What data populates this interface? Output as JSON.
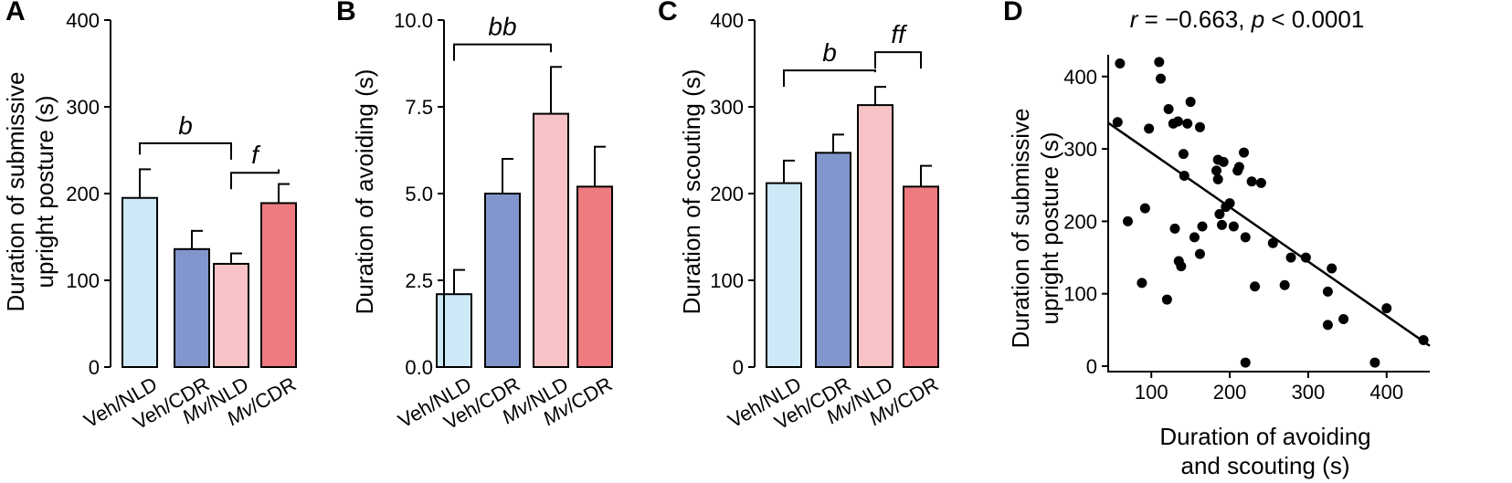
{
  "colors": {
    "veh_nld": "#cde9f8",
    "veh_cdr": "#8196cc",
    "mv_nld": "#f7c3c6",
    "mv_cdr": "#ee7b7f"
  },
  "chart_data": [
    {
      "panel": "A",
      "type": "bar",
      "ylabel_line1": "Duration of submissive",
      "ylabel_line2": "upright posture (s)",
      "ylim": [
        0,
        400
      ],
      "yticks": [
        "0",
        "100",
        "200",
        "300",
        "400"
      ],
      "ytick_values": [
        0,
        100,
        200,
        300,
        400
      ],
      "categories": [
        {
          "pre": "Veh",
          "post": "/NLD",
          "italic_pre": false
        },
        {
          "pre": "Veh",
          "post": "/CDR",
          "italic_pre": false
        },
        {
          "pre": "Mv",
          "post": "/NLD",
          "italic_pre": true
        },
        {
          "pre": "Mv",
          "post": "/CDR",
          "italic_pre": true
        }
      ],
      "values": [
        195,
        136,
        119,
        189
      ],
      "errors": [
        33,
        21,
        12,
        22
      ],
      "brackets": [
        {
          "label": "b",
          "from": 0,
          "to": 2,
          "top": 258
        },
        {
          "label": "f",
          "from": 2,
          "to": 3,
          "top": 224
        }
      ]
    },
    {
      "panel": "B",
      "type": "bar",
      "ylabel_line1": "Duration of avoiding (s)",
      "ylabel_line2": "",
      "ylim": [
        0,
        10
      ],
      "yticks": [
        "0.0",
        "2.5",
        "5.0",
        "7.5",
        "10.0"
      ],
      "ytick_values": [
        0,
        2.5,
        5,
        7.5,
        10
      ],
      "categories": [
        {
          "pre": "Veh",
          "post": "/NLD",
          "italic_pre": false
        },
        {
          "pre": "Veh",
          "post": "/CDR",
          "italic_pre": false
        },
        {
          "pre": "Mv",
          "post": "/NLD",
          "italic_pre": true
        },
        {
          "pre": "Mv",
          "post": "/CDR",
          "italic_pre": true
        }
      ],
      "values": [
        2.1,
        5.0,
        7.3,
        5.2
      ],
      "errors": [
        0.7,
        1.0,
        1.35,
        1.15
      ],
      "brackets": [
        {
          "label": "bb",
          "from": 0,
          "to": 2,
          "top": 9.3
        }
      ]
    },
    {
      "panel": "C",
      "type": "bar",
      "ylabel_line1": "Duration of scouting (s)",
      "ylabel_line2": "",
      "ylim": [
        0,
        400
      ],
      "yticks": [
        "0",
        "100",
        "200",
        "300",
        "400"
      ],
      "ytick_values": [
        0,
        100,
        200,
        300,
        400
      ],
      "categories": [
        {
          "pre": "Veh",
          "post": "/NLD",
          "italic_pre": false
        },
        {
          "pre": "Veh",
          "post": "/CDR",
          "italic_pre": false
        },
        {
          "pre": "Mv",
          "post": "/NLD",
          "italic_pre": true
        },
        {
          "pre": "Mv",
          "post": "/CDR",
          "italic_pre": true
        }
      ],
      "values": [
        212,
        247,
        302,
        208
      ],
      "errors": [
        26,
        21,
        21,
        24
      ],
      "brackets": [
        {
          "label": "b",
          "from": 0,
          "to": 2,
          "top": 342
        },
        {
          "label": "ff",
          "from": 2,
          "to": 3,
          "top": 363
        }
      ]
    },
    {
      "panel": "D",
      "type": "scatter",
      "title": "r = −0.663, p < 0.0001",
      "title_r": "r",
      "title_mid": " = −0.663, ",
      "title_p": "p",
      "title_end": " < 0.0001",
      "ylabel_line1": "Duration of submissive",
      "ylabel_line2": "upright posture (s)",
      "xlabel_line1": "Duration of avoiding",
      "xlabel_line2": "and scouting (s)",
      "xlim": [
        45,
        455
      ],
      "ylim": [
        -5,
        430
      ],
      "xticks": [
        "100",
        "200",
        "300",
        "400"
      ],
      "xtick_values": [
        100,
        200,
        300,
        400
      ],
      "yticks": [
        "0",
        "100",
        "200",
        "300",
        "400"
      ],
      "ytick_values": [
        0,
        100,
        200,
        300,
        400
      ],
      "fit": {
        "x": [
          45,
          455
        ],
        "y": [
          336,
          28
        ]
      },
      "points": [
        [
          60,
          418
        ],
        [
          57,
          337
        ],
        [
          92,
          218
        ],
        [
          70,
          200
        ],
        [
          88,
          115
        ],
        [
          97,
          328
        ],
        [
          110,
          420
        ],
        [
          112,
          397
        ],
        [
          122,
          355
        ],
        [
          130,
          190
        ],
        [
          128,
          335
        ],
        [
          134,
          338
        ],
        [
          135,
          145
        ],
        [
          138,
          138
        ],
        [
          142,
          263
        ],
        [
          141,
          293
        ],
        [
          150,
          365
        ],
        [
          146,
          335
        ],
        [
          162,
          330
        ],
        [
          165,
          193
        ],
        [
          162,
          155
        ],
        [
          120,
          92
        ],
        [
          155,
          178
        ],
        [
          185,
          285
        ],
        [
          183,
          270
        ],
        [
          185,
          258
        ],
        [
          187,
          210
        ],
        [
          190,
          195
        ],
        [
          192,
          282
        ],
        [
          195,
          220
        ],
        [
          200,
          225
        ],
        [
          205,
          193
        ],
        [
          210,
          270
        ],
        [
          212,
          275
        ],
        [
          218,
          295
        ],
        [
          220,
          178
        ],
        [
          228,
          255
        ],
        [
          240,
          253
        ],
        [
          255,
          170
        ],
        [
          232,
          110
        ],
        [
          270,
          112
        ],
        [
          278,
          150
        ],
        [
          297,
          150
        ],
        [
          220,
          5
        ],
        [
          325,
          103
        ],
        [
          330,
          135
        ],
        [
          325,
          57
        ],
        [
          345,
          65
        ],
        [
          385,
          5
        ],
        [
          400,
          80
        ],
        [
          447,
          36
        ]
      ]
    }
  ]
}
